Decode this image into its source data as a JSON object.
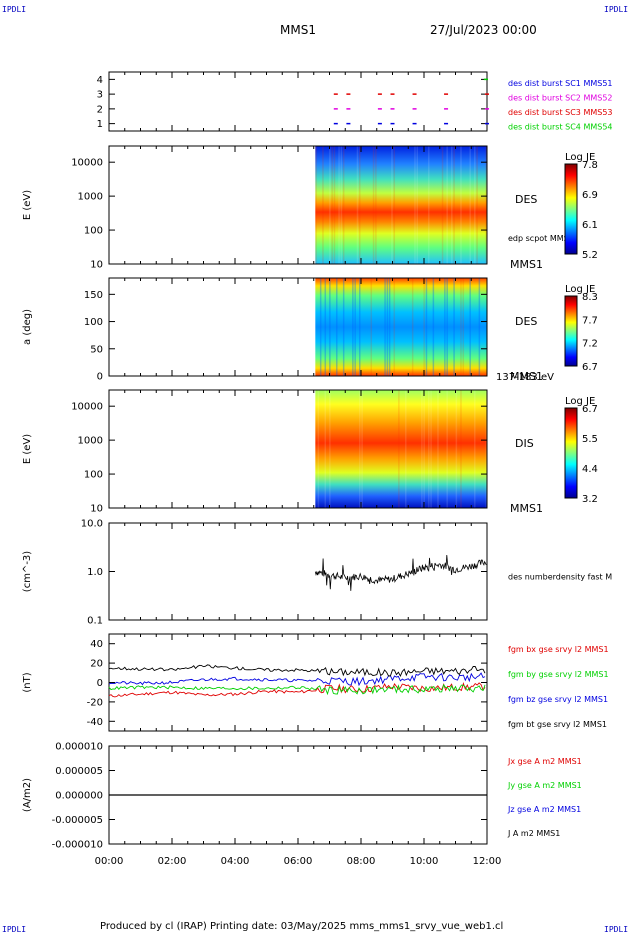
{
  "corners": {
    "top_left": "IPDLI",
    "top_right": "IPDLI",
    "bottom_left": "IPDLI",
    "bottom_right": "IPDLI"
  },
  "header": {
    "spacecraft": "MMS1",
    "date": "27/Jul/2023 00:00"
  },
  "footer": {
    "text": "Produced by cl (IRAP)   Printing date: 03/May/2025   mms_mms1_srvy_vue_web1.cl"
  },
  "colors": {
    "red": "#e00000",
    "green": "#00d000",
    "blue": "#0000e0",
    "magenta": "#e000e0",
    "black": "#000000"
  },
  "chart_data": [
    {
      "type": "scatter",
      "panel": "burst-availability",
      "yticks": [
        "1",
        "2",
        "3",
        "4"
      ],
      "ylim": [
        0.5,
        4.5
      ],
      "x_hours": [
        7.2,
        7.6,
        8.6,
        9.0,
        9.7,
        10.7,
        12.0
      ],
      "series": [
        {
          "name": "des dist burst SC1 MMS51",
          "color": "#0000e0",
          "level": 1
        },
        {
          "name": "des dist burst SC2 MMS52",
          "color": "#e000e0",
          "level": 2
        },
        {
          "name": "des dist burst SC3 MMS53",
          "color": "#e00000",
          "level": 3
        },
        {
          "name": "des dist burst SC4 MMS54",
          "color": "#00d000",
          "level": 4
        }
      ]
    },
    {
      "type": "heatmap",
      "panel": "des-energy",
      "ylabel": "E (eV)",
      "yscale": "log",
      "ylim": [
        10,
        30000
      ],
      "yticks": [
        "10",
        "100",
        "1000",
        "10000"
      ],
      "data_start_hours": 6.55,
      "data_end_hours": 12.0,
      "label": "DES",
      "sublabel": "MMS1",
      "overlay_label": "edp scpot MMS1",
      "colorbar": {
        "title": "Log JE",
        "ticks": [
          "7.8",
          "6.9",
          "6.1",
          "5.2"
        ]
      }
    },
    {
      "type": "heatmap",
      "panel": "des-pitch-angle",
      "ylabel": "a (deg)",
      "ylim": [
        0,
        180
      ],
      "yticks": [
        "0",
        "50",
        "100",
        "150"
      ],
      "data_start_hours": 6.55,
      "data_end_hours": 12.0,
      "label": "DES",
      "sublabel": "MMS1",
      "energy_range": "137-183 eV",
      "colorbar": {
        "title": "Log JE",
        "ticks": [
          "8.3",
          "7.7",
          "7.2",
          "6.7"
        ]
      }
    },
    {
      "type": "heatmap",
      "panel": "dis-energy",
      "ylabel": "E (eV)",
      "yscale": "log",
      "ylim": [
        10,
        30000
      ],
      "yticks": [
        "10",
        "100",
        "1000",
        "10000"
      ],
      "data_start_hours": 6.55,
      "data_end_hours": 12.0,
      "label": "DIS",
      "sublabel": "MMS1",
      "colorbar": {
        "title": "Log JE",
        "ticks": [
          "6.7",
          "5.5",
          "4.4",
          "3.2"
        ]
      }
    },
    {
      "type": "line",
      "panel": "number-density",
      "ylabel": "(cm^-3)",
      "yscale": "log",
      "ylim": [
        0.1,
        10.0
      ],
      "yticks": [
        "0.1",
        "1.0",
        "10.0"
      ],
      "x_hours": [
        6.55,
        7.0,
        7.5,
        8.0,
        8.5,
        9.0,
        9.5,
        10.0,
        10.5,
        11.0,
        11.5,
        12.0
      ],
      "values": [
        1.0,
        0.85,
        0.75,
        0.8,
        0.65,
        0.7,
        0.9,
        1.2,
        1.4,
        1.1,
        1.3,
        1.6
      ],
      "series": [
        {
          "name": "des numberdensity fast M",
          "color": "#000000"
        }
      ]
    },
    {
      "type": "line",
      "panel": "magnetic-field",
      "ylabel": "(nT)",
      "ylim": [
        -50,
        50
      ],
      "yticks": [
        "-40",
        "-20",
        "0",
        "20",
        "40"
      ],
      "x_hours": [
        0,
        1,
        2,
        3,
        4,
        5,
        6,
        7,
        8,
        9,
        10,
        11,
        12
      ],
      "series": [
        {
          "name": "fgm bx gse srvy l2 MMS1",
          "color": "#e00000",
          "values": [
            -14,
            -12,
            -10,
            -13,
            -12,
            -9,
            -10,
            -6,
            -7,
            -4,
            -6,
            -5,
            -4
          ]
        },
        {
          "name": "fgm by gse srvy l2 MMS1",
          "color": "#00d000",
          "values": [
            -6,
            -5,
            -5,
            -6,
            -6,
            -6,
            -5,
            -8,
            -8,
            -7,
            -7,
            -6,
            -6
          ]
        },
        {
          "name": "fgm bz gse srvy l2 MMS1",
          "color": "#0000e0",
          "values": [
            0,
            -1,
            0,
            3,
            4,
            3,
            2,
            2,
            1,
            4,
            6,
            5,
            6
          ]
        },
        {
          "name": "fgm bt gse srvy l2 MMS1",
          "color": "#000000",
          "values": [
            15,
            14,
            13,
            17,
            15,
            13,
            13,
            11,
            11,
            10,
            12,
            12,
            13
          ]
        }
      ]
    },
    {
      "type": "line",
      "panel": "current-density",
      "ylabel": "(A/m2)",
      "ylim": [
        -1e-05,
        1e-05
      ],
      "yticks": [
        "-0.000010",
        "-0.000005",
        "0.000000",
        "0.000005",
        "0.000010"
      ],
      "series": [
        {
          "name": "Jx gse A m2 MMS1",
          "color": "#e00000"
        },
        {
          "name": "Jy gse A m2 MMS1",
          "color": "#00d000"
        },
        {
          "name": "Jz gse A m2 MMS1",
          "color": "#0000e0"
        },
        {
          "name": "J A m2 MMS1",
          "color": "#000000",
          "values": [
            0,
            0
          ]
        }
      ]
    }
  ],
  "time_axis": {
    "ticks": [
      "00:00",
      "02:00",
      "04:00",
      "06:00",
      "08:00",
      "10:00",
      "12:00"
    ],
    "range_hours": [
      0,
      12
    ]
  }
}
